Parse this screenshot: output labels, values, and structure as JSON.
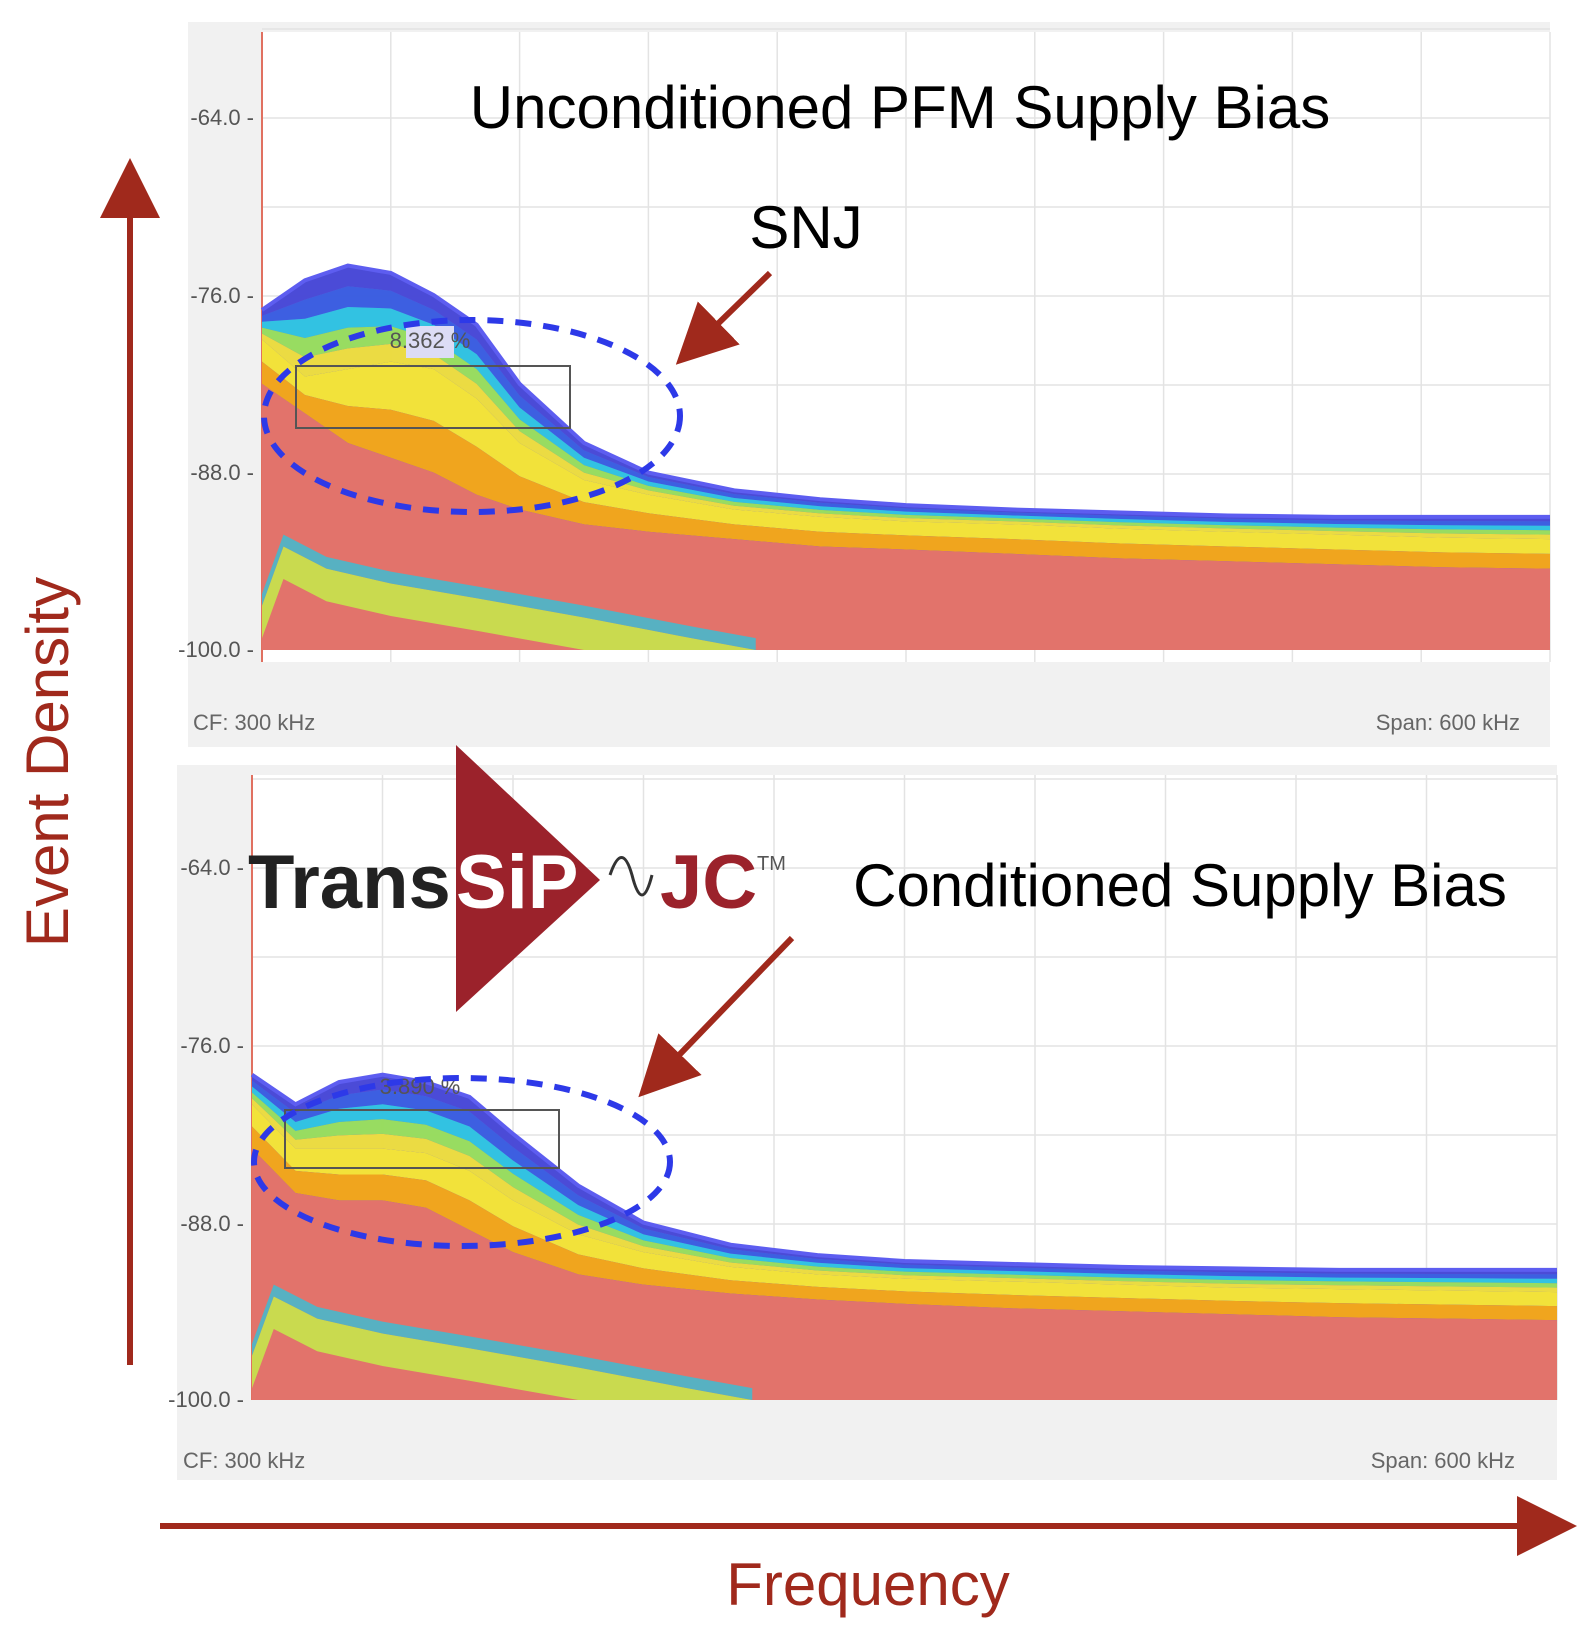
{
  "axes": {
    "y_label": "Event Density",
    "x_label": "Frequency",
    "arrow_color": "#a0291c"
  },
  "logo": {
    "text_trans": "Trans",
    "text_sip": "SiP",
    "text_jc": "JC",
    "tm": "TM",
    "triangle_color": "#9b222b",
    "jc_color": "#9b222b"
  },
  "chart_data": [
    {
      "type": "area",
      "title": "Unconditioned PFM Supply Bias",
      "annotation": "SNJ",
      "marker_label": "8.362 %",
      "footer_left": "CF: 300 kHz",
      "footer_right": "Span: 600 kHz",
      "y_ticks": [
        "-64.0",
        "-76.0",
        "-88.0",
        "-100.0"
      ],
      "ylim": [
        -100,
        -58
      ],
      "x": [
        0,
        20,
        40,
        60,
        80,
        100,
        120,
        150,
        180,
        220,
        260,
        300,
        350,
        400,
        450,
        500,
        550,
        600
      ],
      "series": [
        {
          "values": [
            -82,
            -84,
            -86,
            -87,
            -88,
            -89.5,
            -90.5,
            -91.5,
            -92,
            -92.5,
            -93,
            -93.2,
            -93.5,
            -93.8,
            -94,
            -94.2,
            -94.4,
            -94.5
          ]
        },
        {
          "values": [
            -79,
            -81.5,
            -81,
            -80.5,
            -81,
            -83,
            -86,
            -88.5,
            -89.5,
            -90.5,
            -91,
            -91.3,
            -91.5,
            -91.8,
            -92,
            -92.2,
            -92.4,
            -92.5
          ]
        },
        {
          "values": [
            -77,
            -75,
            -74,
            -74.5,
            -76,
            -78,
            -82,
            -86,
            -88,
            -89.2,
            -89.8,
            -90.2,
            -90.5,
            -90.7,
            -90.9,
            -91,
            -91,
            -91
          ]
        }
      ],
      "colors": {
        "base": "#e2736b",
        "band": [
          "#f0a51e",
          "#f2e23a",
          "#9be35a",
          "#2fc7e2",
          "#3b5fe0",
          "#4a4ad6"
        ],
        "outline": "#5d5df0"
      }
    },
    {
      "type": "area",
      "title": "Conditioned Supply Bias",
      "marker_label": "3.890 %",
      "footer_left": "CF: 300 kHz",
      "footer_right": "Span: 600 kHz",
      "y_ticks": [
        "-64.0",
        "-76.0",
        "-88.0",
        "-100.0"
      ],
      "ylim": [
        -100,
        -58
      ],
      "x": [
        0,
        20,
        40,
        60,
        80,
        100,
        120,
        150,
        180,
        220,
        260,
        300,
        350,
        400,
        450,
        500,
        550,
        600
      ],
      "series": [
        {
          "values": [
            -83,
            -86,
            -86.5,
            -86.5,
            -87,
            -88.5,
            -90,
            -91.5,
            -92.2,
            -92.8,
            -93.2,
            -93.5,
            -93.8,
            -94,
            -94.2,
            -94.4,
            -94.5,
            -94.6
          ]
        },
        {
          "values": [
            -80,
            -83,
            -83,
            -83,
            -83.3,
            -84.5,
            -86.5,
            -88.8,
            -90,
            -91,
            -91.5,
            -91.8,
            -92,
            -92.2,
            -92.4,
            -92.5,
            -92.6,
            -92.7
          ]
        },
        {
          "values": [
            -78,
            -80,
            -78.5,
            -78,
            -78.5,
            -79.5,
            -82,
            -85.5,
            -88,
            -89.5,
            -90.2,
            -90.6,
            -90.8,
            -91,
            -91.1,
            -91.2,
            -91.2,
            -91.2
          ]
        }
      ],
      "colors": {
        "base": "#e2736b",
        "band": [
          "#f0a51e",
          "#f2e23a",
          "#9be35a",
          "#2fc7e2",
          "#3b5fe0",
          "#4a4ad6"
        ],
        "outline": "#5d5df0"
      }
    }
  ]
}
